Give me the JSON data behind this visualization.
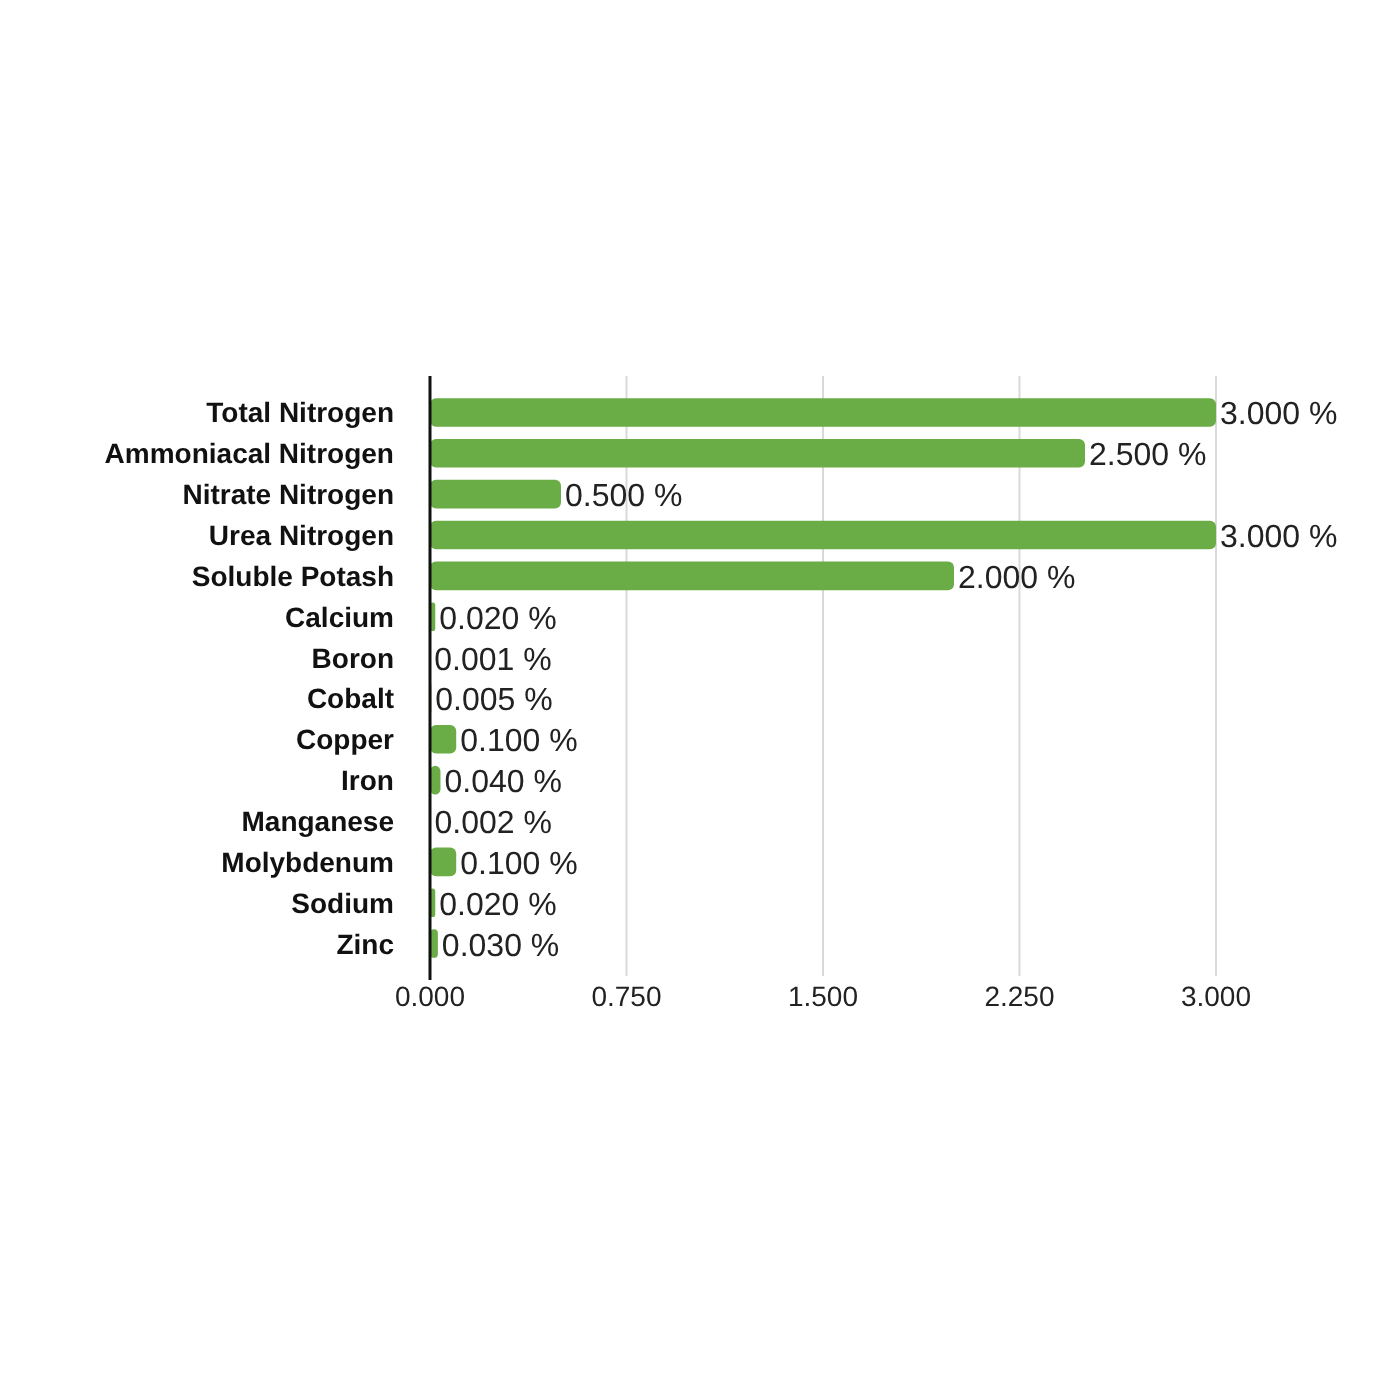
{
  "chart_data": {
    "type": "bar",
    "orientation": "horizontal",
    "categories": [
      "Total Nitrogen",
      "Ammoniacal Nitrogen",
      "Nitrate Nitrogen",
      "Urea Nitrogen",
      "Soluble Potash",
      "Calcium",
      "Boron",
      "Cobalt",
      "Copper",
      "Iron",
      "Manganese",
      "Molybdenum",
      "Sodium",
      "Zinc"
    ],
    "values": [
      3.0,
      2.5,
      0.5,
      3.0,
      2.0,
      0.02,
      0.001,
      0.005,
      0.1,
      0.04,
      0.002,
      0.1,
      0.02,
      0.03
    ],
    "value_labels": [
      "3.000 %",
      "2.500 %",
      "0.500 %",
      "3.000 %",
      "2.000 %",
      "0.020 %",
      "0.001 %",
      "0.005 %",
      "0.100 %",
      "0.040 %",
      "0.002 %",
      "0.100 %",
      "0.020 %",
      "0.030 %"
    ],
    "color": "#6aac46",
    "xlim": [
      0,
      3.0
    ],
    "xticks": [
      {
        "value": 0,
        "label": "0.000"
      },
      {
        "value": 0.75,
        "label": "0.750"
      },
      {
        "value": 1.5,
        "label": "1.500"
      },
      {
        "value": 2.25,
        "label": "2.250"
      },
      {
        "value": 3.0,
        "label": "3.000"
      }
    ],
    "grid": "x"
  }
}
